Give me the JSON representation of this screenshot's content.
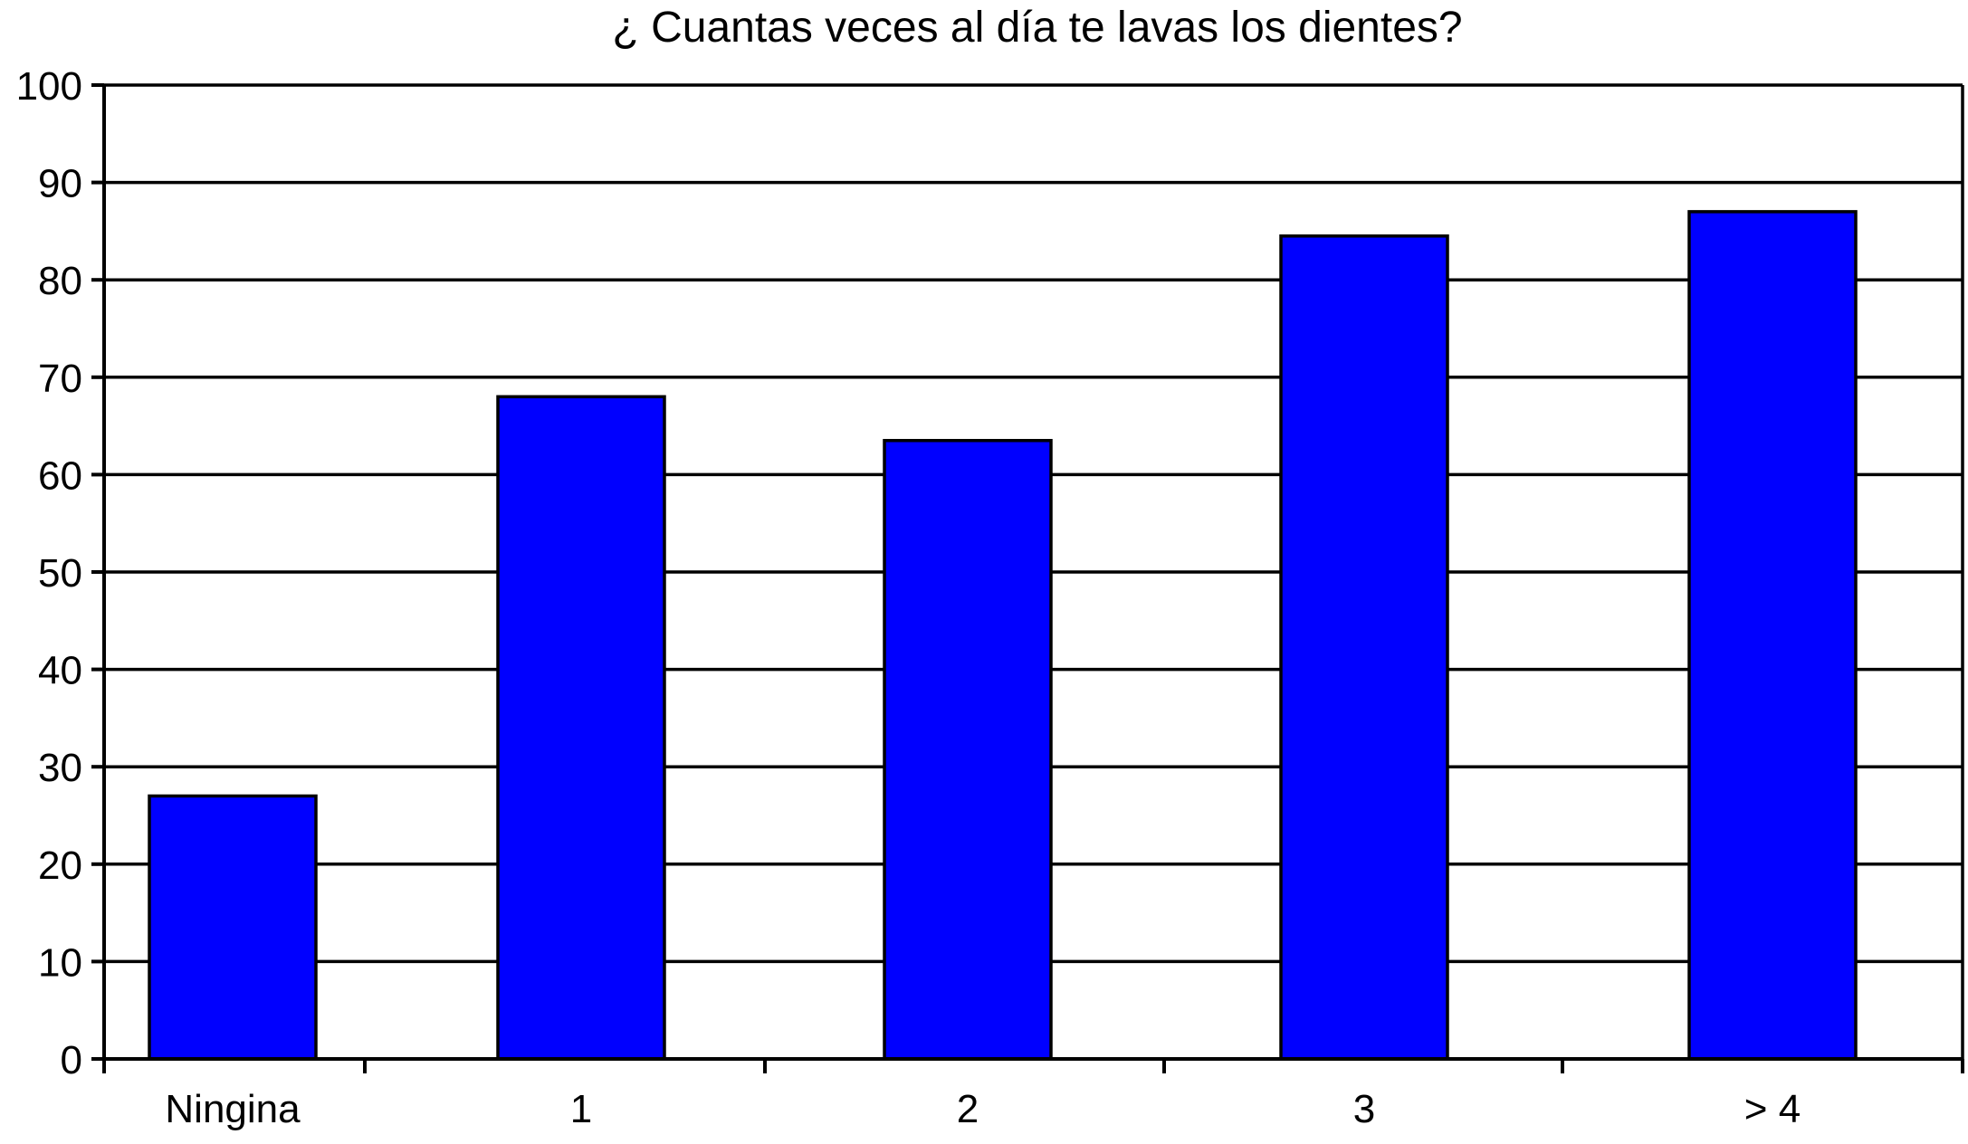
{
  "chart_data": {
    "type": "bar",
    "title": "¿ Cuantas veces al día te lavas los dientes?",
    "xlabel": "",
    "ylabel": "",
    "categories": [
      "Ningina",
      "1",
      "2",
      "3",
      "> 4"
    ],
    "values": [
      27,
      68,
      63.5,
      84.5,
      87
    ],
    "ylim": [
      0,
      100
    ],
    "yticks": [
      "0",
      "10",
      "20",
      "30",
      "40",
      "50",
      "60",
      "70",
      "80",
      "90",
      "100"
    ],
    "grid": true,
    "legend": "none",
    "colors": {
      "bar": "#0000ff",
      "grid": "#000000",
      "background": "#ffffff"
    }
  }
}
